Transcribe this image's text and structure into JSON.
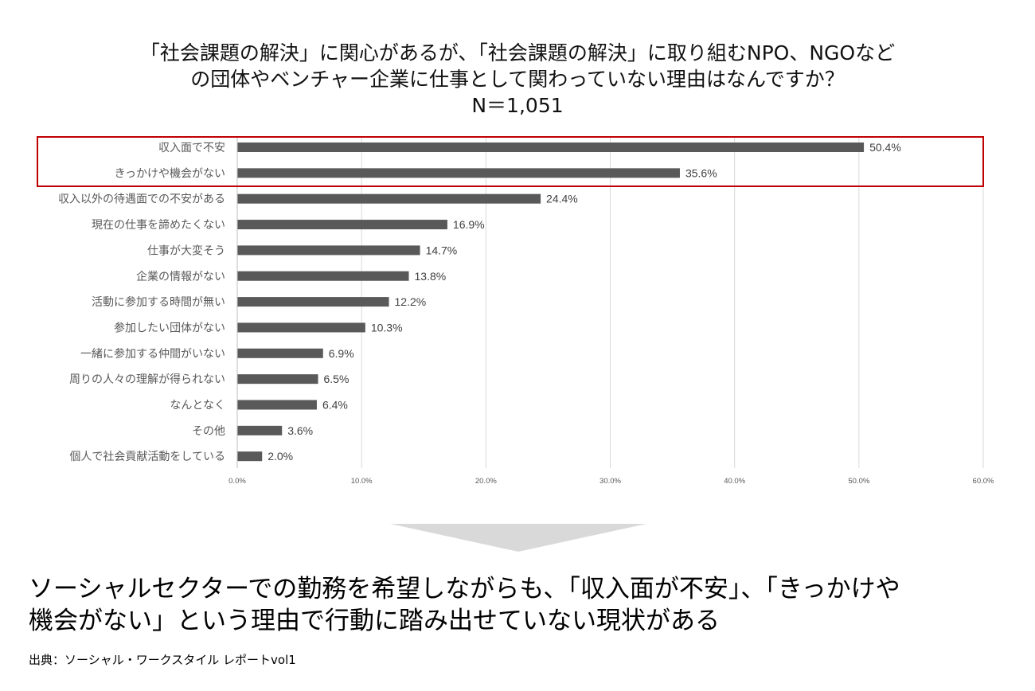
{
  "title": {
    "line1": "「社会課題の解決」に関心があるが、「社会課題の解決」に取り組むNPO、NGOなど",
    "line2": "の団体やベンチャー企業に仕事として関わっていない理由はなんですか？",
    "line3": "N＝1,051"
  },
  "chart_data": {
    "type": "bar",
    "orientation": "horizontal",
    "title": "「社会課題の解決」に関心があるが、「社会課題の解決」に取り組むNPO、NGOなどの団体やベンチャー企業に仕事として関わっていない理由はなんですか？ N＝1,051",
    "categories": [
      "収入面で不安",
      "きっかけや機会がない",
      "収入以外の待遇面での不安がある",
      "現在の仕事を諦めたくない",
      "仕事が大変そう",
      "企業の情報がない",
      "活動に参加する時間が無い",
      "参加したい団体がない",
      "一緒に参加する仲間がいない",
      "周りの人々の理解が得られない",
      "なんとなく",
      "その他",
      "個人で社会貢献活動をしている"
    ],
    "values": [
      50.4,
      35.6,
      24.4,
      16.9,
      14.7,
      13.8,
      12.2,
      10.3,
      6.9,
      6.5,
      6.4,
      3.6,
      2.0
    ],
    "value_labels": [
      "50.4%",
      "35.6%",
      "24.4%",
      "16.9%",
      "14.7%",
      "13.8%",
      "12.2%",
      "10.3%",
      "6.9%",
      "6.5%",
      "6.4%",
      "3.6%",
      "2.0%"
    ],
    "xlim": [
      0,
      60
    ],
    "xticks": [
      0,
      10,
      20,
      30,
      40,
      50,
      60
    ],
    "xtick_labels": [
      "0.0%",
      "10.0%",
      "20.0%",
      "30.0%",
      "40.0%",
      "50.0%",
      "60.0%"
    ],
    "xlabel": "",
    "ylabel": "",
    "grid": "vertical",
    "highlighted_categories": [
      "収入面で不安",
      "きっかけや機会がない"
    ],
    "colors": {
      "bar": "#595959",
      "highlight": "#c00000",
      "grid": "#d9d9d9",
      "arrow": "#d9d9d9"
    }
  },
  "conclusion": {
    "line1": "ソーシャルセクターでの勤務を希望しながらも、「収入面が不安」、「きっかけや",
    "line2": "機会がない」という理由で行動に踏み出せていない現状がある"
  },
  "source": "出典：ソーシャル・ワークスタイル レポートvol1"
}
